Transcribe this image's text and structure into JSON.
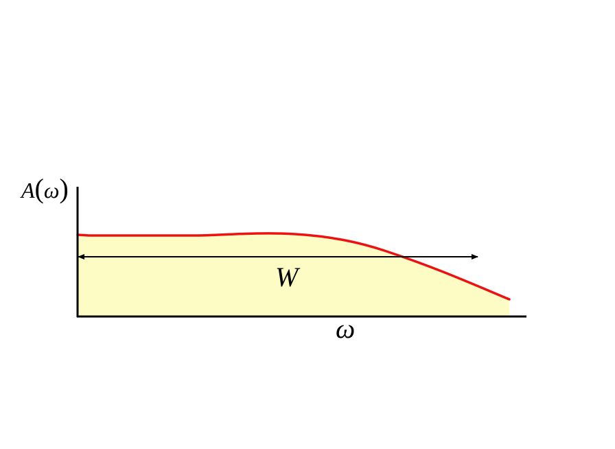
{
  "diagram": {
    "y_label_fn": "A",
    "y_label_arg": "ω",
    "x_label": "ω",
    "width_label": "W",
    "colors": {
      "fill": "#fcfcc4",
      "curve": "#ee1111",
      "axes": "#000000",
      "arrow": "#000000"
    }
  }
}
